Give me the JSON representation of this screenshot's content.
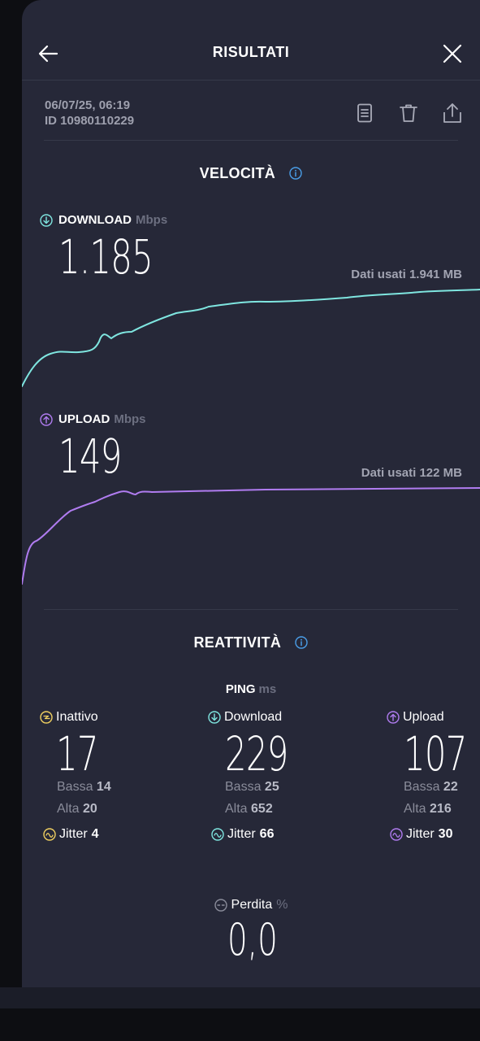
{
  "header": {
    "title": "RISULTATI"
  },
  "meta": {
    "date": "06/07/25, 06:19",
    "id": "ID 10980110229"
  },
  "velocity": {
    "title": "VELOCITÀ",
    "download": {
      "label": "DOWNLOAD",
      "unit": "Mbps",
      "value": "1.185",
      "data_used": "Dati usati 1.941 MB"
    },
    "upload": {
      "label": "UPLOAD",
      "unit": "Mbps",
      "value": "149",
      "data_used": "Dati usati 122 MB"
    }
  },
  "reactivity": {
    "title": "REATTIVITÀ",
    "ping": {
      "label": "PING",
      "unit": "ms"
    },
    "columns": [
      {
        "label": "Inattivo",
        "value": "17",
        "low_label": "Bassa",
        "low": "14",
        "high_label": "Alta",
        "high": "20",
        "jitter_label": "Jitter",
        "jitter": "4"
      },
      {
        "label": "Download",
        "value": "229",
        "low_label": "Bassa",
        "low": "25",
        "high_label": "Alta",
        "high": "652",
        "jitter_label": "Jitter",
        "jitter": "66"
      },
      {
        "label": "Upload",
        "value": "107",
        "low_label": "Bassa",
        "low": "22",
        "high_label": "Alta",
        "high": "216",
        "jitter_label": "Jitter",
        "jitter": "30"
      }
    ],
    "loss": {
      "label": "Perdita",
      "unit": "%",
      "value": "0,0"
    }
  },
  "colors": {
    "download": "#7fe6e0",
    "upload": "#b07cf0",
    "idle": "#f0d060",
    "info": "#4a9ee8"
  }
}
